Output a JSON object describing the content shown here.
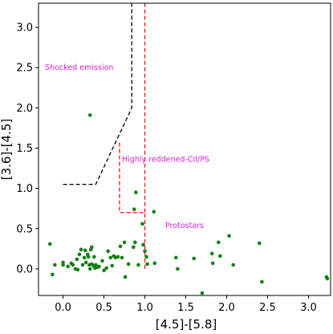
{
  "colors": {
    "points": "#138013",
    "boundary_black": "#000000",
    "boundary_red": "#e8161b",
    "annotation": "#d81bd8"
  },
  "chart_data": {
    "type": "scatter",
    "xlabel": "[4.5]-[5.8]",
    "ylabel": "[3.6]-[4.5]",
    "xlim": [
      -0.3,
      3.27
    ],
    "ylim": [
      -0.33,
      3.3
    ],
    "xticks": [
      0.0,
      0.5,
      1.0,
      1.5,
      2.0,
      2.5,
      3.0
    ],
    "yticks": [
      0.0,
      0.5,
      1.0,
      1.5,
      2.0,
      2.5,
      3.0
    ],
    "xtick_labels": [
      "0.0",
      "0.5",
      "1.0",
      "1.5",
      "2.0",
      "2.5",
      "3.0"
    ],
    "ytick_labels": [
      "0.0",
      "0.5",
      "1.0",
      "1.5",
      "2.0",
      "2.5",
      "3.0"
    ],
    "grid": false,
    "annotations": [
      {
        "text": "Shocked emission",
        "x": -0.22,
        "y": 2.47
      },
      {
        "text": "Highly reddened-CII/PS",
        "x": 0.72,
        "y": 1.33
      },
      {
        "text": "Protostars",
        "x": 1.25,
        "y": 0.51
      }
    ],
    "boundaries": [
      {
        "color": "black",
        "points": [
          [
            0.0,
            1.05
          ],
          [
            0.4,
            1.05
          ],
          [
            0.84,
            2.0
          ],
          [
            0.84,
            3.3
          ]
        ]
      },
      {
        "color": "red",
        "points": [
          [
            0.69,
            1.57
          ],
          [
            0.69,
            0.7
          ],
          [
            1.0,
            0.7
          ],
          [
            1.0,
            0.0
          ]
        ]
      },
      {
        "color": "red",
        "points": [
          [
            1.0,
            0.7
          ],
          [
            1.0,
            3.3
          ]
        ]
      }
    ],
    "points": [
      [
        0.33,
        1.91
      ],
      [
        0.89,
        0.95
      ],
      [
        0.87,
        0.74
      ],
      [
        1.11,
        0.71
      ],
      [
        0.97,
        0.56
      ],
      [
        -0.16,
        0.31
      ],
      [
        -0.1,
        0.05
      ],
      [
        -0.13,
        -0.07
      ],
      [
        0.0,
        0.08
      ],
      [
        0.0,
        0.05
      ],
      [
        0.06,
        0.03
      ],
      [
        0.1,
        0.07
      ],
      [
        0.12,
        0.05
      ],
      [
        0.15,
        0.0
      ],
      [
        0.17,
        0.12
      ],
      [
        0.18,
        -0.01
      ],
      [
        0.2,
        0.18
      ],
      [
        0.22,
        0.24
      ],
      [
        0.24,
        0.05
      ],
      [
        0.26,
        0.14
      ],
      [
        0.27,
        0.23
      ],
      [
        0.28,
        0.08
      ],
      [
        0.3,
        0.18
      ],
      [
        0.31,
        0.15
      ],
      [
        0.32,
        0.05
      ],
      [
        0.33,
        0.0
      ],
      [
        0.34,
        0.24
      ],
      [
        0.35,
        0.27
      ],
      [
        0.35,
        0.06
      ],
      [
        0.37,
        0.04
      ],
      [
        0.38,
        0.15
      ],
      [
        0.39,
        0.01
      ],
      [
        0.4,
        0.05
      ],
      [
        0.42,
        0.02
      ],
      [
        0.44,
        0.03
      ],
      [
        0.48,
        0.1
      ],
      [
        0.5,
        -0.02
      ],
      [
        0.53,
        0.01
      ],
      [
        0.55,
        0.22
      ],
      [
        0.58,
        0.14
      ],
      [
        0.6,
        0.04
      ],
      [
        0.62,
        0.16
      ],
      [
        0.64,
        0.14
      ],
      [
        0.67,
        0.15
      ],
      [
        0.7,
        0.28
      ],
      [
        0.72,
        0.14
      ],
      [
        0.75,
        0.33
      ],
      [
        0.76,
        -0.1
      ],
      [
        0.8,
        0.06
      ],
      [
        0.86,
        0.27
      ],
      [
        0.88,
        0.33
      ],
      [
        0.92,
        0.05
      ],
      [
        0.98,
        0.3
      ],
      [
        1.0,
        0.22
      ],
      [
        1.02,
        0.15
      ],
      [
        1.03,
        0.06
      ],
      [
        1.12,
        0.07
      ],
      [
        1.38,
        0.14
      ],
      [
        1.4,
        0.0
      ],
      [
        1.6,
        0.13
      ],
      [
        1.7,
        -0.3
      ],
      [
        1.82,
        0.19
      ],
      [
        1.83,
        0.07
      ],
      [
        1.9,
        0.33
      ],
      [
        1.92,
        0.16
      ],
      [
        2.03,
        0.41
      ],
      [
        2.08,
        0.05
      ],
      [
        2.4,
        0.32
      ],
      [
        2.43,
        -0.16
      ],
      [
        3.22,
        -0.1
      ],
      [
        3.23,
        -0.12
      ]
    ]
  }
}
